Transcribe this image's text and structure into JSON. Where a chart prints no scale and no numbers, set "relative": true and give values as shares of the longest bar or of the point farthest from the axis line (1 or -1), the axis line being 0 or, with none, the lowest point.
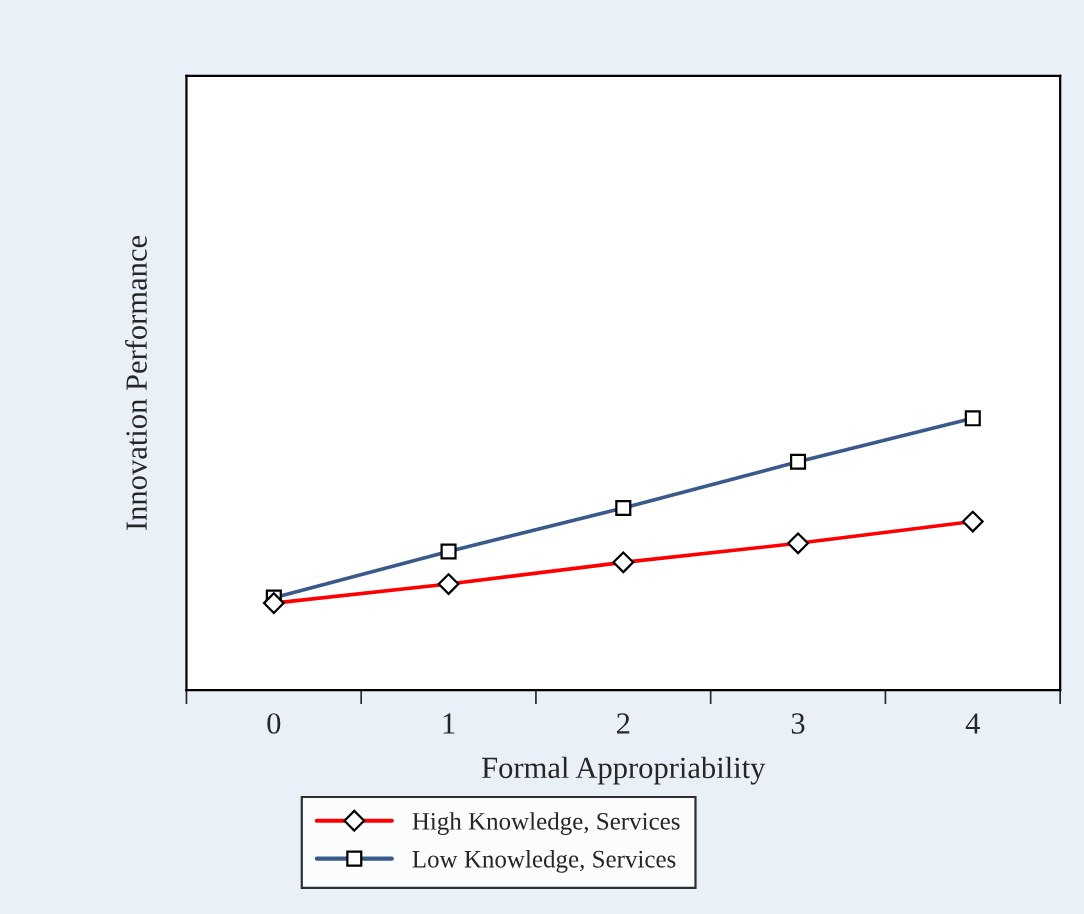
{
  "chart_data": {
    "type": "line",
    "relative": true,
    "xlabel": "Formal Appropriability",
    "ylabel": "Innovation Performance",
    "categories": [
      "0",
      "1",
      "2",
      "3",
      "4"
    ],
    "series": [
      {
        "name": "High Knowledge, Services",
        "color": "#ff0000",
        "marker": "diamond",
        "values": [
          0.32,
          0.39,
          0.47,
          0.54,
          0.62
        ]
      },
      {
        "name": "Low Knowledge, Services",
        "color": "#3b5a8c",
        "marker": "square",
        "values": [
          0.34,
          0.51,
          0.67,
          0.84,
          1.0
        ]
      }
    ],
    "legend": "bottom",
    "grid": false,
    "line_style": "solid"
  }
}
